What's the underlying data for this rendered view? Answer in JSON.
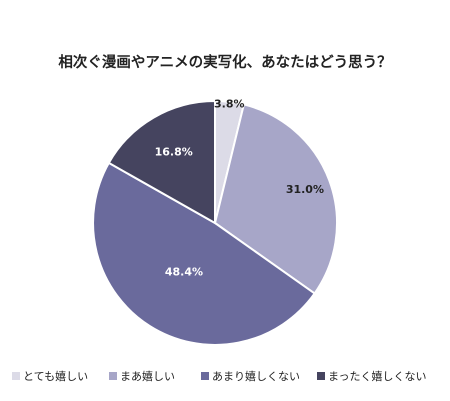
{
  "chart_data": {
    "type": "pie",
    "title": "相次ぐ漫画やアニメの実写化、あなたはどう思う？",
    "categories": [
      "とても嬉しい",
      "まあ嬉しい",
      "あまり嬉しくない",
      "まったく嬉しくない"
    ],
    "values": [
      3.8,
      31.0,
      48.4,
      16.8
    ],
    "data_labels": [
      "3.8%",
      "31.0%",
      "48.4%",
      "16.8%"
    ],
    "colors": [
      "#dcdbe7",
      "#a7a6c8",
      "#6a6a9c",
      "#45445f"
    ],
    "label_colors": [
      "#222222",
      "#222222",
      "#ffffff",
      "#ffffff"
    ],
    "start": "12 o'clock",
    "direction": "clockwise",
    "legend": "bottom"
  }
}
